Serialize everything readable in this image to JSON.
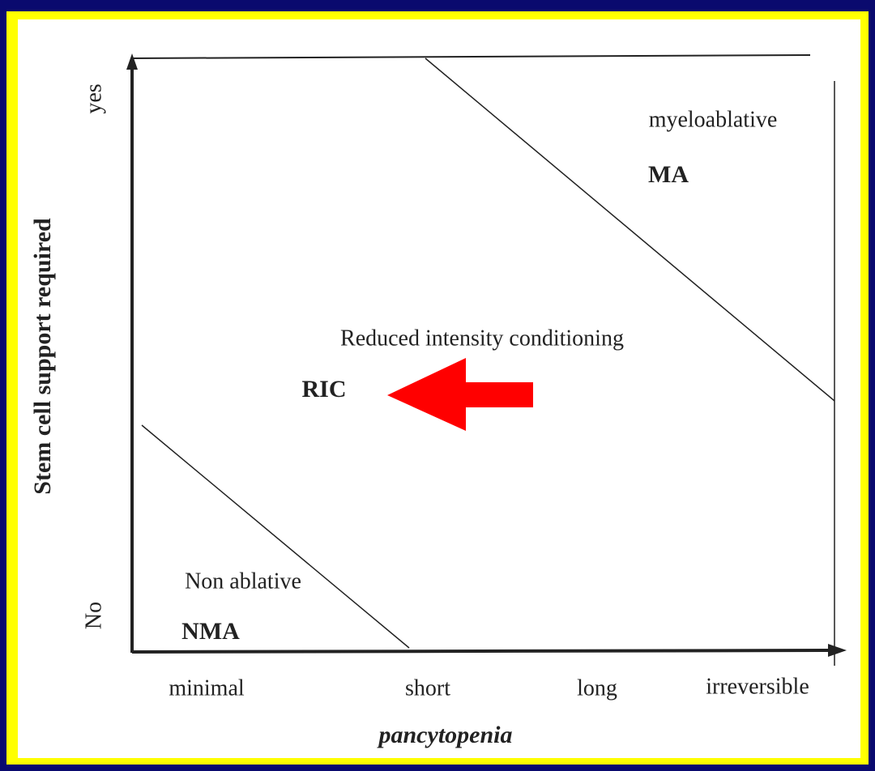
{
  "axes": {
    "y_label": "Stem cell support required",
    "x_label": "pancytopenia",
    "y_levels": [
      "yes",
      "No"
    ],
    "x_levels": [
      "minimal",
      "short",
      "long",
      "irreversible"
    ]
  },
  "regions": [
    {
      "name": "myeloablative",
      "abbr": "MA"
    },
    {
      "name": "Reduced intensity conditioning",
      "abbr": "RIC"
    },
    {
      "name": "Non ablative",
      "abbr": "NMA"
    }
  ]
}
